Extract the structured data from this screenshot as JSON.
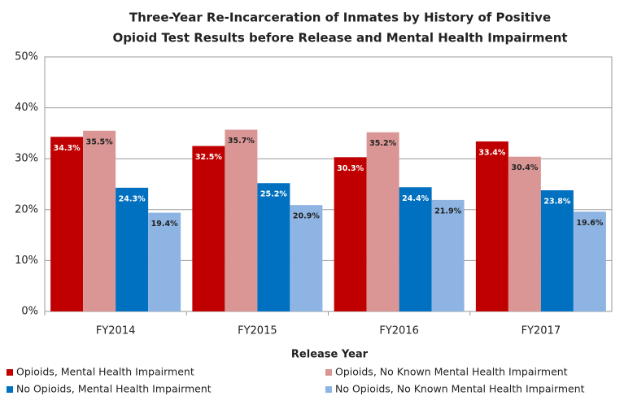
{
  "chart_data": {
    "type": "bar",
    "title": [
      "Three-Year Re-Incarceration of Inmates by History of Positive",
      "Opioid Test Results before Release and Mental Health Impairment"
    ],
    "x_label": "Release Year",
    "categories": [
      "FY2014",
      "FY2015",
      "FY2016",
      "FY2017"
    ],
    "series": [
      {
        "name": "Opioids, Mental Health Impairment",
        "color": "#c00000",
        "label_color": "#ffffff",
        "values": [
          34.3,
          32.5,
          30.3,
          33.4
        ],
        "value_labels": [
          "34.3%",
          "32.5%",
          "30.3%",
          "33.4%"
        ]
      },
      {
        "name": "Opioids, No Known Mental Health Impairment",
        "color": "#d99694",
        "label_color": "#222222",
        "values": [
          35.5,
          35.7,
          35.2,
          30.4
        ],
        "value_labels": [
          "35.5%",
          "35.7%",
          "35.2%",
          "30.4%"
        ]
      },
      {
        "name": "No Opioids, Mental Health Impairment",
        "color": "#0070c0",
        "label_color": "#ffffff",
        "values": [
          24.3,
          25.2,
          24.4,
          23.8
        ],
        "value_labels": [
          "24.3%",
          "25.2%",
          "24.4%",
          "23.8%"
        ]
      },
      {
        "name": "No Opioids, No Known Mental Health Impairment",
        "color": "#8db4e2",
        "label_color": "#222222",
        "values": [
          19.4,
          20.9,
          21.9,
          19.6
        ],
        "value_labels": [
          "19.4%",
          "20.9%",
          "21.9%",
          "19.6%"
        ]
      }
    ],
    "ylim": [
      0,
      50
    ],
    "yticks": [
      {
        "value": 0,
        "label": "0%"
      },
      {
        "value": 10,
        "label": "10%"
      },
      {
        "value": 20,
        "label": "20%"
      },
      {
        "value": 30,
        "label": "30%"
      },
      {
        "value": 40,
        "label": "40%"
      },
      {
        "value": 50,
        "label": "50%"
      }
    ],
    "grid": true
  }
}
